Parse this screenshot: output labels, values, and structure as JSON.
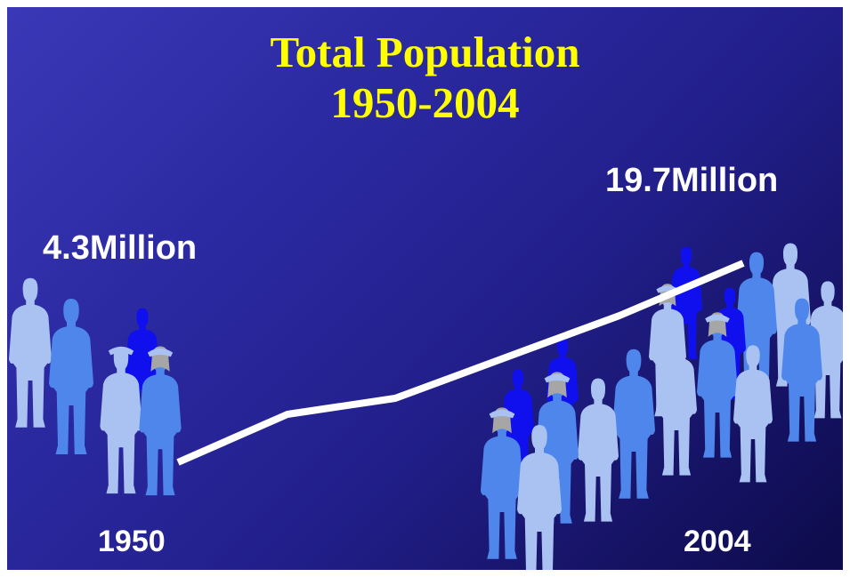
{
  "title": {
    "line1": "Total Population",
    "line2": "1950-2004"
  },
  "labels": {
    "start_value": "4.3Million",
    "end_value": "19.7Million",
    "start_year": "1950",
    "end_year": "2004"
  },
  "colors": {
    "title": "#ffff00",
    "text": "#ffffff",
    "trend_line": "#ffffff",
    "figure_light": "#a9c2f2",
    "figure_mid": "#4f86ec",
    "figure_dark": "#1010ee",
    "figure_grey": "#a6a6a6"
  },
  "chart_data": {
    "type": "line",
    "x": [
      1950,
      2004
    ],
    "series": [
      {
        "values": [
          4.3,
          19.7
        ]
      }
    ],
    "xlim": [
      1950,
      2004
    ],
    "ylim": [
      4.3,
      19.7
    ],
    "grid": false,
    "legend": "none",
    "decoration": "people silhouettes"
  }
}
